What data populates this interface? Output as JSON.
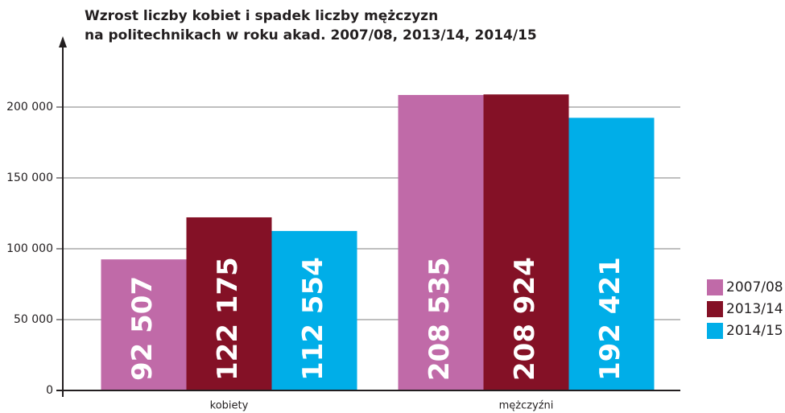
{
  "chart_data": {
    "type": "bar",
    "title": [
      "Wzrost liczby kobiet i spadek liczby mężczyzn",
      "na politechnikach w roku akad. 2007/08, 2013/14, 2014/15"
    ],
    "categories": [
      "kobiety",
      "mężczyźni"
    ],
    "series": [
      {
        "name": "2007/08",
        "color": "#c06aa8",
        "values": [
          92507,
          208535
        ],
        "value_labels": [
          "92 507",
          "208 535"
        ]
      },
      {
        "name": "2013/14",
        "color": "#841126",
        "values": [
          122175,
          208924
        ],
        "value_labels": [
          "122 175",
          "208 924"
        ]
      },
      {
        "name": "2014/15",
        "color": "#00aee8",
        "values": [
          112554,
          192421
        ],
        "value_labels": [
          "112 554",
          "192 421"
        ]
      }
    ],
    "ylim": [
      0,
      250000
    ],
    "yticks": [
      0,
      {
        "value": 50000,
        "label": "50 000"
      },
      {
        "value": 100000,
        "label": "100 000"
      },
      {
        "value": 150000,
        "label": "150 000"
      },
      {
        "value": 200000,
        "label": "200 000"
      }
    ],
    "grid": true,
    "legend": "right"
  }
}
